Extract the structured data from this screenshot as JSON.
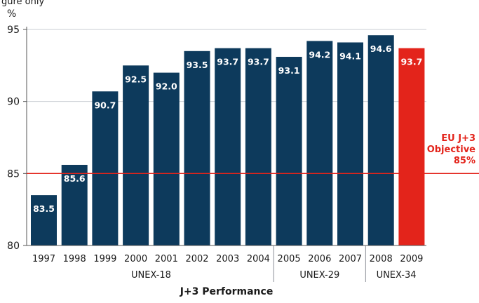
{
  "chart_data": {
    "type": "bar",
    "top_text": "gure only",
    "title": "J+3 Performance",
    "ylabel": "%",
    "ylim": [
      80,
      95
    ],
    "yticks": [
      80,
      85,
      90,
      95
    ],
    "categories": [
      "1997",
      "1998",
      "1999",
      "2000",
      "2001",
      "2002",
      "2003",
      "2004",
      "2005",
      "2006",
      "2007",
      "2008",
      "2009"
    ],
    "values": [
      83.5,
      85.6,
      90.7,
      92.5,
      92.0,
      93.5,
      93.7,
      93.7,
      93.1,
      94.2,
      94.1,
      94.6,
      93.7
    ],
    "value_labels": [
      "83.5",
      "85.6",
      "90.7",
      "92.5",
      "92.0",
      "93.5",
      "93.7",
      "93.7",
      "93.1",
      "94.2",
      "94.1",
      "94.6",
      "93.7"
    ],
    "bar_color": "#0d3a5c",
    "highlight_color": "#e3241b",
    "highlight_index": 12,
    "grid": true,
    "groups": [
      {
        "label": "UNEX-18",
        "from": 0,
        "to": 7
      },
      {
        "label": "UNEX-29",
        "from": 8,
        "to": 10
      },
      {
        "label": "UNEX-34",
        "from": 11,
        "to": 12
      }
    ],
    "objective": {
      "value": 85,
      "color": "#e3241b",
      "label_lines": [
        "EU J+3",
        "Objective",
        "85%"
      ]
    }
  }
}
